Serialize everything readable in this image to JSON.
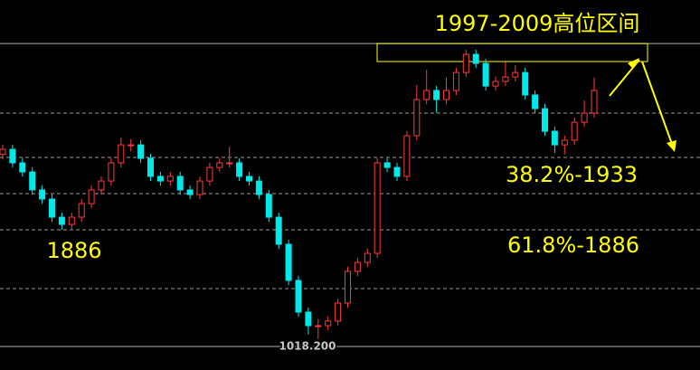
{
  "chart_data": {
    "type": "candlestick",
    "title": "1997-2009高位区间",
    "annotations": [
      "38.2%-1933",
      "61.8%-1886",
      "1886"
    ],
    "price_label": "1018.200",
    "up_color": "#ff3a3a",
    "down_color": "#00e8e8",
    "ylim": [
      1794.9,
      2035.3
    ],
    "zone": [
      1995.3,
      2007.0
    ],
    "hlines": [
      {
        "value": 2007.0,
        "style": "solid"
      },
      {
        "value": 1961.8,
        "style": "dashed"
      },
      {
        "value": 1933,
        "style": "dashed"
      },
      {
        "value": 1909.5,
        "style": "dashed"
      },
      {
        "value": 1886,
        "style": "dashed"
      },
      {
        "value": 1847.8,
        "style": "dashed"
      },
      {
        "value": 1810.2,
        "style": "solid"
      }
    ],
    "open": [
      1935.0,
      1938.3,
      1929.5,
      1923.6,
      1911.9,
      1906.0,
      1894.2,
      1889.5,
      1894.2,
      1903.0,
      1911.9,
      1917.7,
      1929.5,
      1941.2,
      1941.2,
      1932.4,
      1920.7,
      1917.7,
      1920.7,
      1911.9,
      1908.9,
      1917.7,
      1926.5,
      1929.5,
      1929.5,
      1920.7,
      1917.7,
      1908.9,
      1894.2,
      1876.6,
      1853.1,
      1832.5,
      1823.7,
      1823.7,
      1826.7,
      1838.4,
      1859.0,
      1864.8,
      1870.7,
      1929.5,
      1926.5,
      1920.7,
      1947.1,
      1970.6,
      1976.5,
      1970.6,
      1976.5,
      1988.2,
      2000.0,
      1994.1,
      1979.4,
      1982.4,
      1985.3,
      1988.2,
      1973.6,
      1964.7,
      1950.0,
      1941.2,
      1944.2,
      1955.9,
      1961.8
    ],
    "high": [
      1941.3,
      1941.3,
      1932.5,
      1926.6,
      1914.9,
      1909.0,
      1897.2,
      1897.2,
      1906.0,
      1914.9,
      1920.7,
      1932.5,
      1946.0,
      1945.0,
      1944.2,
      1935.4,
      1923.7,
      1923.7,
      1923.7,
      1914.9,
      1920.7,
      1929.5,
      1932.5,
      1940.0,
      1932.5,
      1923.7,
      1920.7,
      1911.9,
      1897.2,
      1879.6,
      1856.1,
      1835.5,
      1828.0,
      1829.7,
      1841.4,
      1862.0,
      1867.8,
      1873.7,
      1932.5,
      1932.5,
      1929.5,
      1950.1,
      1980.0,
      1990.0,
      1979.5,
      1985.0,
      1991.2,
      2003.0,
      2003.0,
      1997.1,
      1985.4,
      1995.0,
      1993.0,
      1991.2,
      1976.6,
      1967.7,
      1953.0,
      1947.2,
      1958.9,
      1970.0,
      1985.0
    ],
    "low": [
      1932.0,
      1926.5,
      1920.6,
      1908.9,
      1903.0,
      1891.2,
      1886.0,
      1886.5,
      1891.2,
      1900.0,
      1908.9,
      1914.7,
      1926.5,
      1937.0,
      1929.4,
      1917.7,
      1914.7,
      1914.7,
      1908.9,
      1905.9,
      1905.9,
      1914.7,
      1923.5,
      1926.5,
      1917.7,
      1914.7,
      1905.9,
      1891.2,
      1873.6,
      1850.1,
      1829.5,
      1818.0,
      1815.0,
      1820.7,
      1823.7,
      1835.4,
      1856.0,
      1861.8,
      1867.7,
      1923.5,
      1917.7,
      1917.7,
      1944.1,
      1967.6,
      1962.0,
      1967.6,
      1973.5,
      1985.2,
      1991.1,
      1976.4,
      1976.4,
      1979.4,
      1982.3,
      1970.6,
      1961.7,
      1947.0,
      1936.0,
      1935.0,
      1941.2,
      1952.9,
      1958.8
    ],
    "close": [
      1938.3,
      1929.5,
      1923.6,
      1911.9,
      1906.0,
      1894.2,
      1889.5,
      1894.2,
      1903.0,
      1911.9,
      1917.7,
      1929.5,
      1941.2,
      1941.2,
      1932.4,
      1920.7,
      1917.7,
      1920.7,
      1911.9,
      1908.9,
      1917.7,
      1926.5,
      1929.5,
      1929.5,
      1920.7,
      1917.7,
      1908.9,
      1894.2,
      1876.6,
      1853.1,
      1832.5,
      1823.7,
      1823.7,
      1826.7,
      1838.4,
      1859.0,
      1864.8,
      1870.7,
      1929.5,
      1926.5,
      1920.7,
      1947.1,
      1970.6,
      1976.5,
      1970.6,
      1976.5,
      1988.2,
      2000.0,
      1994.1,
      1979.4,
      1982.4,
      1985.3,
      1988.2,
      1973.6,
      1964.7,
      1950.0,
      1941.2,
      1944.2,
      1955.9,
      1961.8,
      1976.5
    ]
  }
}
